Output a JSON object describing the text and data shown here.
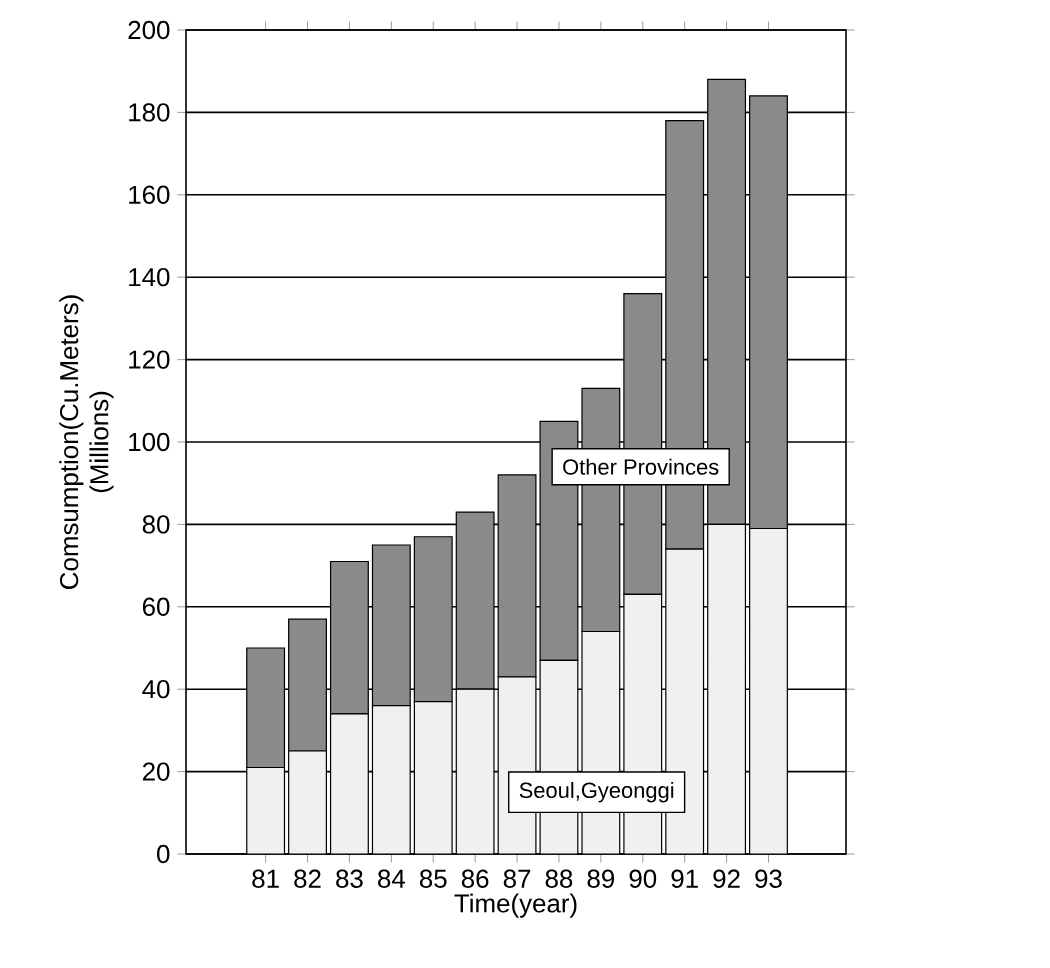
{
  "chart_data": {
    "type": "bar",
    "stacked": true,
    "xlabel": "Time(year)",
    "ylabel": "Comsumption(Cu.Meters)",
    "annotations": [
      "(Millions)"
    ],
    "categories": [
      "81",
      "82",
      "83",
      "84",
      "85",
      "86",
      "87",
      "88",
      "89",
      "90",
      "91",
      "92",
      "93"
    ],
    "series": [
      {
        "name": "Seoul,Gyeonggi",
        "color": "#f0f0f0",
        "values": [
          21,
          25,
          34,
          36,
          37,
          40,
          43,
          47,
          54,
          63,
          74,
          80,
          79
        ]
      },
      {
        "name": "Other Provinces",
        "color": "#8a8a8a",
        "values": [
          29,
          32,
          37,
          39,
          40,
          43,
          49,
          58,
          59,
          73,
          104,
          108,
          105
        ]
      }
    ],
    "ylim": [
      0,
      200
    ],
    "yticks": [
      0,
      20,
      40,
      60,
      80,
      100,
      120,
      140,
      160,
      180,
      200
    ],
    "grid": "y"
  }
}
